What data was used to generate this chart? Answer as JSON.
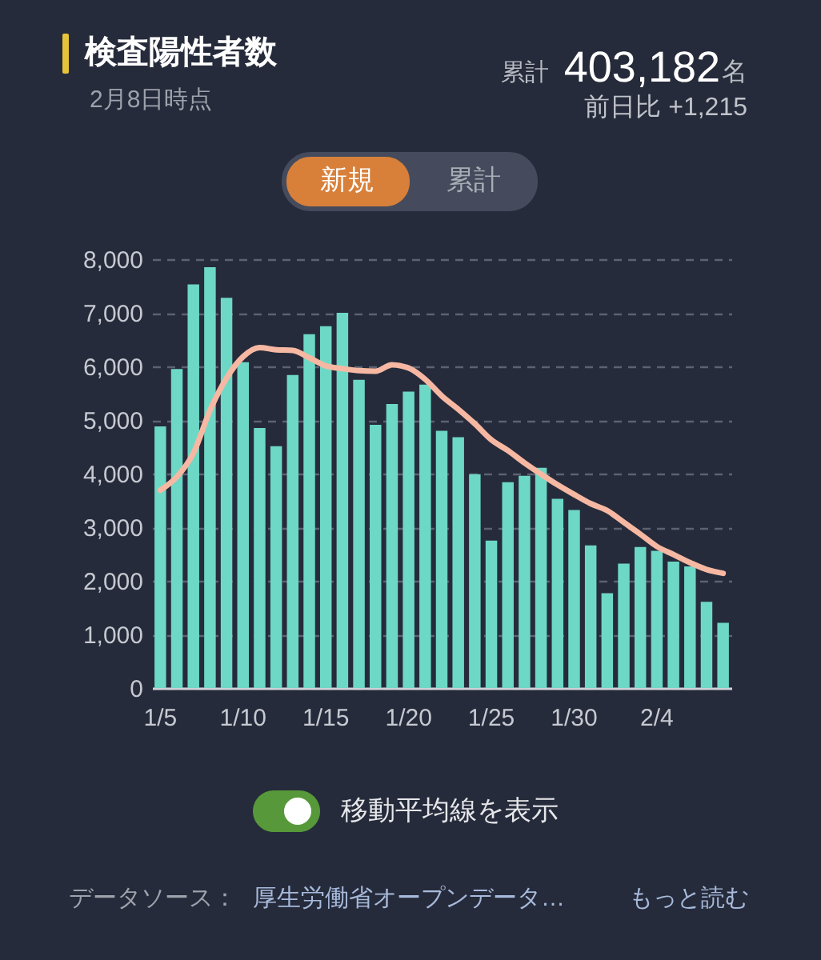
{
  "chart_data": {
    "type": "bar",
    "title": "検査陽性者数",
    "subtitle": "2月8日時点",
    "categories": [
      "1/5",
      null,
      null,
      null,
      null,
      "1/10",
      null,
      null,
      null,
      null,
      "1/15",
      null,
      null,
      null,
      null,
      "1/20",
      null,
      null,
      null,
      null,
      "1/25",
      null,
      null,
      null,
      null,
      "1/30",
      null,
      null,
      null,
      null,
      "2/4",
      null,
      null,
      null,
      null
    ],
    "series": [
      {
        "color": "#6dd8c6",
        "values": [
          4880,
          5950,
          7530,
          7850,
          7280,
          6080,
          4850,
          4510,
          5840,
          6600,
          6750,
          7000,
          5750,
          4910,
          5300,
          5530,
          5660,
          4800,
          4680,
          3990,
          2750,
          3840,
          3960,
          4110,
          3530,
          3320,
          2660,
          1770,
          2320,
          2630,
          2560,
          2360,
          2270,
          1610,
          1215
        ]
      },
      {
        "type": "line",
        "color": "#f6b8a2",
        "values": [
          3690,
          3940,
          4380,
          5180,
          5780,
          6180,
          6350,
          6310,
          6300,
          6160,
          6010,
          5960,
          5920,
          5910,
          6030,
          5970,
          5760,
          5450,
          5200,
          4930,
          4630,
          4430,
          4200,
          3990,
          3790,
          3610,
          3440,
          3310,
          3090,
          2870,
          2640,
          2490,
          2340,
          2210,
          2140
        ]
      }
    ],
    "ylim": [
      0,
      8000
    ],
    "yticks": [
      0,
      {
        "value": 1000,
        "label": "1,000"
      },
      {
        "value": 2000,
        "label": "2,000"
      },
      {
        "value": 3000,
        "label": "3,000"
      },
      {
        "value": 4000,
        "label": "4,000"
      },
      {
        "value": 5000,
        "label": "5,000"
      },
      {
        "value": 6000,
        "label": "6,000"
      },
      {
        "value": 7000,
        "label": "7,000"
      },
      {
        "value": 8000,
        "label": "8,000"
      }
    ],
    "grid": "y",
    "annotations": [
      "累計",
      "403,182",
      "名",
      "前日比 +1,215",
      "新規",
      "累計",
      "移動平均線を表示",
      "データソース：",
      "厚生労働省オープンデータ…",
      "もっと読む"
    ]
  }
}
